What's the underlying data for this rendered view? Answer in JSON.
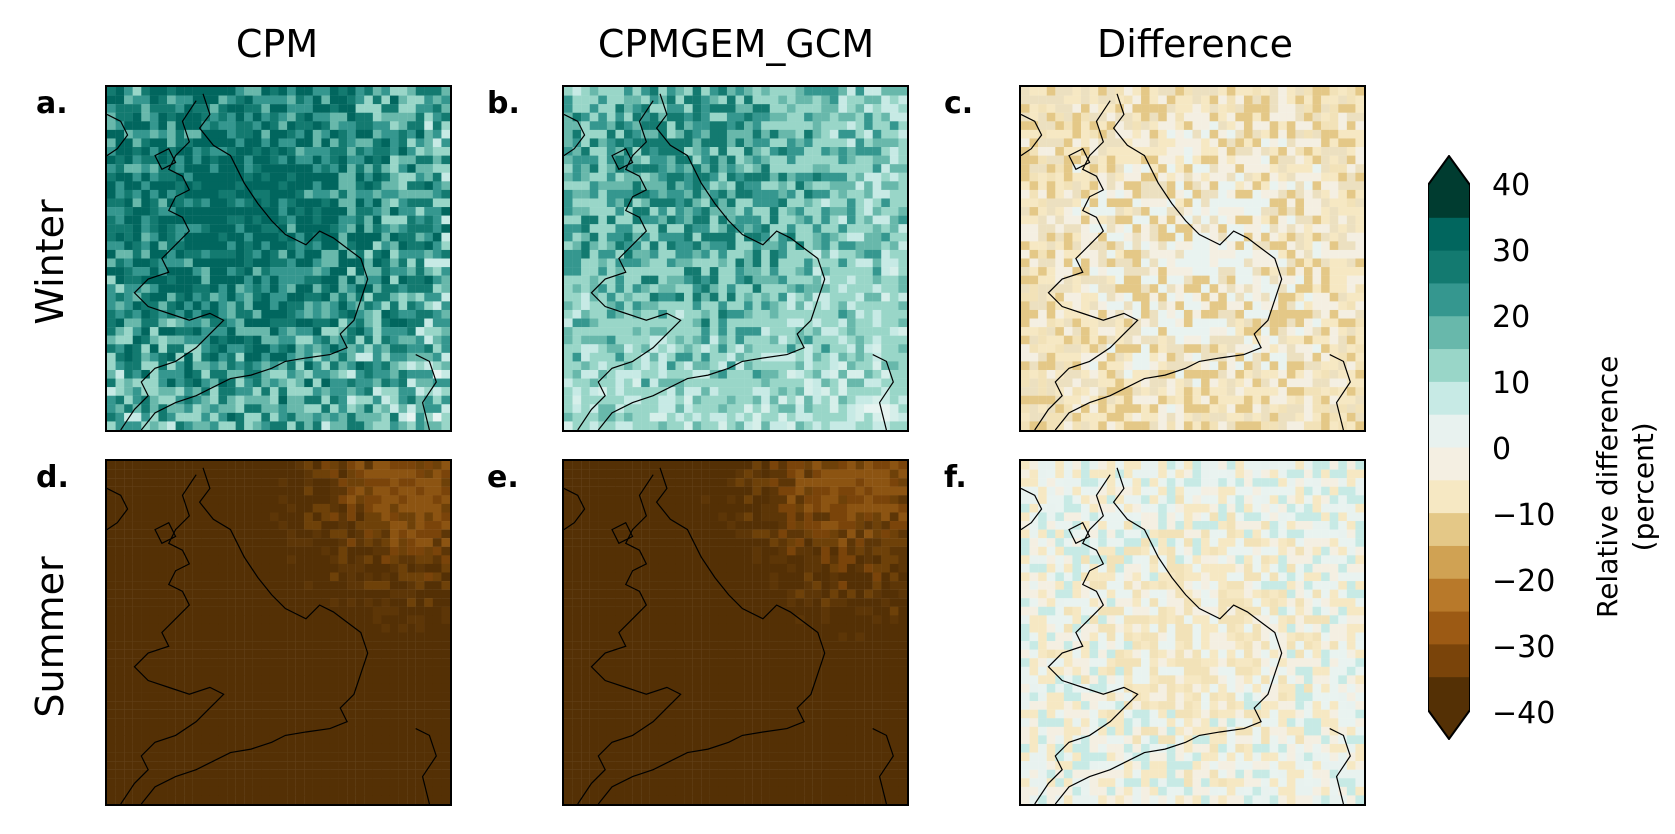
{
  "columns": [
    "CPM",
    "CPMGEM_GCM",
    "Difference"
  ],
  "rows": [
    "Winter",
    "Summer"
  ],
  "panels": [
    {
      "letter": "a.",
      "row": 0,
      "col": 0,
      "palette": "winter_model"
    },
    {
      "letter": "b.",
      "row": 0,
      "col": 1,
      "palette": "winter_model_light"
    },
    {
      "letter": "c.",
      "row": 0,
      "col": 2,
      "palette": "winter_diff"
    },
    {
      "letter": "d.",
      "row": 1,
      "col": 0,
      "palette": "summer_model"
    },
    {
      "letter": "e.",
      "row": 1,
      "col": 1,
      "palette": "summer_model"
    },
    {
      "letter": "f.",
      "row": 1,
      "col": 2,
      "palette": "summer_diff"
    }
  ],
  "colorbar": {
    "label_line1": "Relative difference",
    "label_line2": "(percent)",
    "ticks": [
      "40",
      "30",
      "20",
      "10",
      "0",
      "−10",
      "−20",
      "−30",
      "−40"
    ],
    "colors": [
      "#003c30",
      "#01665e",
      "#137a70",
      "#35978f",
      "#68b8ab",
      "#99d6c8",
      "#c7eae5",
      "#e8f2ef",
      "#f4efe2",
      "#f6e8c3",
      "#e4c887",
      "#d0a253",
      "#b8792a",
      "#9c5a14",
      "#7a440a",
      "#543005"
    ]
  },
  "chart_data": {
    "type": "heatmap",
    "title": "",
    "panels": [
      "a. CPM Winter",
      "b. CPMGEM_GCM Winter",
      "c. Difference Winter",
      "d. CPM Summer",
      "e. CPMGEM_GCM Summer",
      "f. Difference Summer"
    ],
    "colorbar_range": [
      -40,
      40
    ],
    "colorbar_ticks": [
      -40,
      -30,
      -20,
      -10,
      0,
      10,
      20,
      30,
      40
    ],
    "colorbar_label": "Relative difference (percent)"
  }
}
